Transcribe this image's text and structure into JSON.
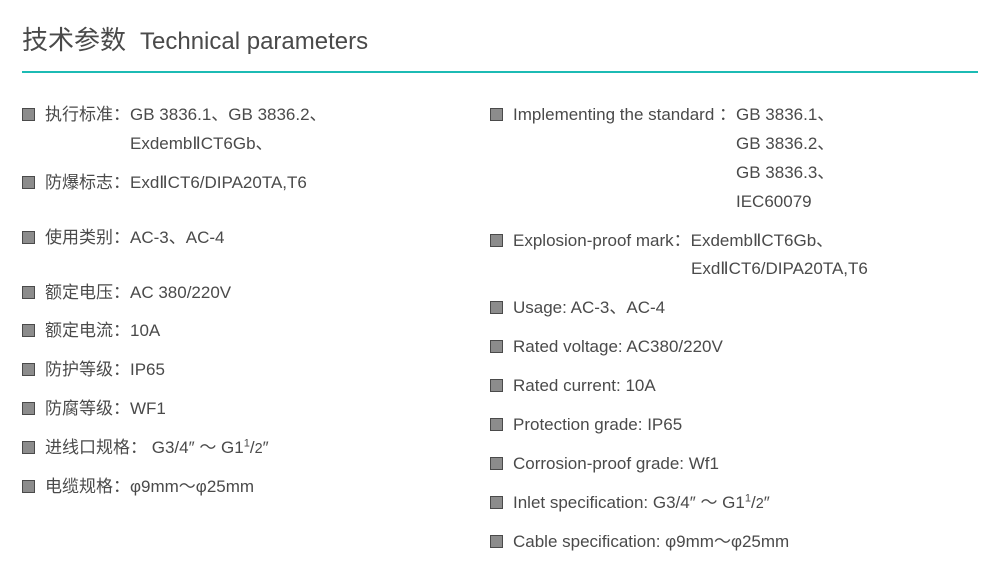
{
  "styling": {
    "text_color": "#4a4a4a",
    "bullet_fill": "#8c8c8c",
    "bullet_border": "#4a4a4a",
    "divider_color": "#1cbbb4",
    "header_cn_fontsize": 26,
    "header_en_fontsize": 24,
    "body_fontsize": 17,
    "bullet_size": 13,
    "background_color": "#ffffff"
  },
  "header": {
    "title_cn": "技术参数",
    "title_en": "Technical parameters"
  },
  "left": [
    {
      "label": "执行标准：",
      "lines": [
        "GB 3836.1、GB 3836.2、",
        "ExdembⅡCT6Gb、"
      ]
    },
    {
      "label": "防爆标志：",
      "lines": [
        "ExdⅡCT6/DIPA20TA,T6"
      ]
    },
    {
      "label": "使用类别：",
      "lines": [
        "AC-3、AC-4"
      ]
    },
    {
      "label": "额定电压：",
      "lines": [
        "AC 380/220V"
      ]
    },
    {
      "label": "额定电流：",
      "lines": [
        "10A"
      ]
    },
    {
      "label": "防护等级：",
      "lines": [
        "IP65"
      ]
    },
    {
      "label": "防腐等级：",
      "lines": [
        "WF1"
      ]
    },
    {
      "label": "进线口规格：",
      "lines": [
        " G3/4″ ～ G1¹/2″"
      ]
    },
    {
      "label": "电缆规格：",
      "lines": [
        "φ9mm～φ25mm"
      ]
    }
  ],
  "right": [
    {
      "label": "Implementing the standard ：",
      "lines": [
        "GB 3836.1、",
        "GB 3836.2、",
        "GB 3836.3、",
        "IEC60079"
      ]
    },
    {
      "label": "Explosion-proof mark：",
      "lines": [
        "ExdembⅡCT6Gb、",
        "ExdⅡCT6/DIPA20TA,T6"
      ]
    },
    {
      "label": "Usage: ",
      "lines": [
        "AC-3、AC-4"
      ]
    },
    {
      "label": "Rated voltage: ",
      "lines": [
        "AC380/220V"
      ]
    },
    {
      "label": "Rated current: ",
      "lines": [
        "10A"
      ]
    },
    {
      "label": "Protection grade: ",
      "lines": [
        "IP65"
      ]
    },
    {
      "label": "Corrosion-proof grade: ",
      "lines": [
        "Wf1"
      ]
    },
    {
      "label": "Inlet specification: ",
      "lines": [
        "G3/4″ ～ G1¹/2″"
      ]
    },
    {
      "label": "Cable specification: ",
      "lines": [
        "φ9mm～φ25mm"
      ]
    }
  ],
  "left_spacing_breaks": [
    1,
    2
  ],
  "right_spacing_breaks": []
}
